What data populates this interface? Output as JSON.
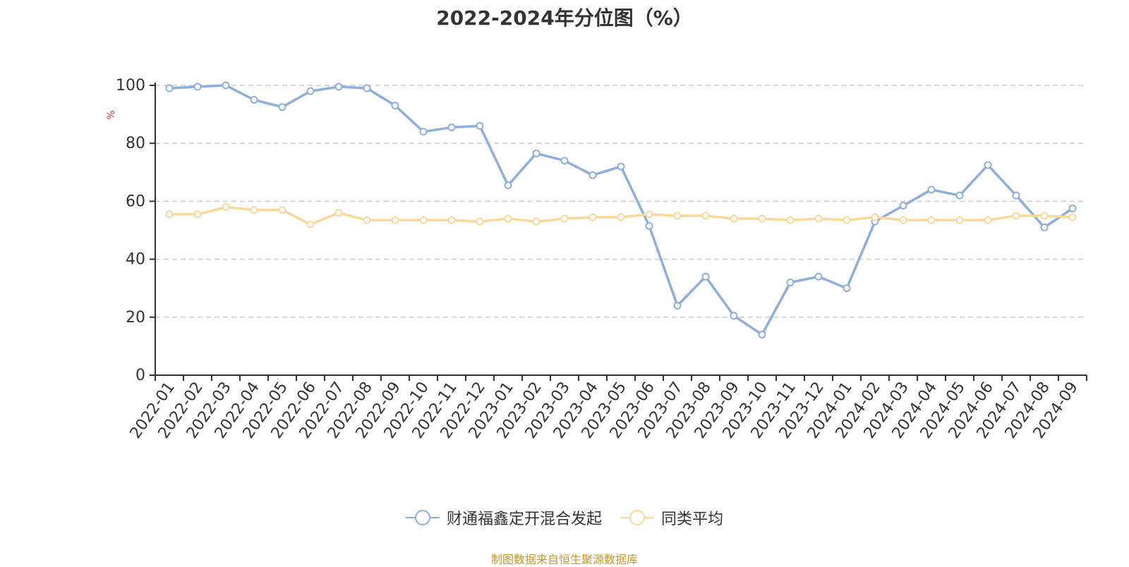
{
  "chart_data": {
    "type": "line",
    "title": "2022-2024年分位图（%）",
    "ylabel": "%",
    "ylim": [
      0,
      100
    ],
    "yticks": [
      0,
      20,
      40,
      60,
      80,
      100
    ],
    "grid": true,
    "legend_position": "bottom",
    "categories": [
      "2022-01",
      "2022-02",
      "2022-03",
      "2022-04",
      "2022-05",
      "2022-06",
      "2022-07",
      "2022-08",
      "2022-09",
      "2022-10",
      "2022-11",
      "2022-12",
      "2023-01",
      "2023-02",
      "2023-03",
      "2023-04",
      "2023-05",
      "2023-06",
      "2023-07",
      "2023-08",
      "2023-09",
      "2023-10",
      "2023-11",
      "2023-12",
      "2024-01",
      "2024-02",
      "2024-03",
      "2024-04",
      "2024-05",
      "2024-06",
      "2024-07",
      "2024-08",
      "2024-09"
    ],
    "series": [
      {
        "name": "财通福鑫定开混合发起",
        "color": "#8eaedc",
        "values": [
          99,
          99.5,
          100,
          95,
          92.5,
          98,
          99.5,
          99,
          93,
          84,
          85.5,
          86,
          65.5,
          76.5,
          74,
          69,
          72,
          51.5,
          24,
          34,
          20.5,
          14,
          32,
          34,
          30,
          53,
          58.5,
          64,
          62,
          72.5,
          62,
          51,
          57.5
        ]
      },
      {
        "name": "同类平均",
        "color": "#fbd898",
        "values": [
          55.5,
          55.5,
          58,
          57,
          57,
          52,
          56,
          53.5,
          53.5,
          53.5,
          53.5,
          53,
          54,
          53,
          54,
          54.5,
          54.5,
          55.5,
          55,
          55,
          54,
          54,
          53.5,
          54,
          53.5,
          54.5,
          53.5,
          53.5,
          53.5,
          53.5,
          55,
          55,
          54.5
        ]
      }
    ]
  },
  "source_text": "制图数据来自恒生聚源数据库",
  "colors": {
    "axis": "#333333",
    "grid": "#cccccc",
    "ylabel": "#e8322c",
    "source": "#c8962a"
  }
}
